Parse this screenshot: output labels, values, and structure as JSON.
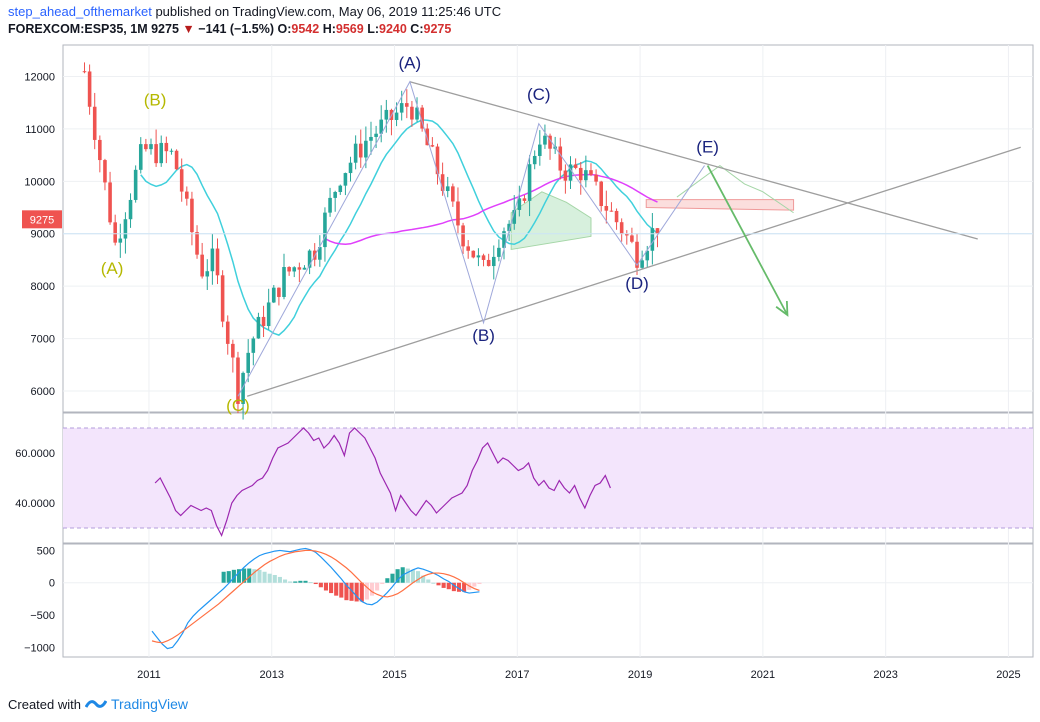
{
  "header": {
    "author": "step_ahead_ofthemarket",
    "published": " published on TradingView.com, May 06, 2019 11:25:46 UTC",
    "symbol": "FOREXCOM:ESP35, 1M",
    "last": "9275",
    "change_arrow": "▼",
    "change": "−141 (−1.5%)",
    "open_label": "O:",
    "open": "9542",
    "high_label": "H:",
    "high": "9569",
    "low_label": "L:",
    "low": "9240",
    "close_label": "C:",
    "close": "9275"
  },
  "footer": {
    "created_with": "Created with",
    "brand": "TradingView"
  },
  "colors": {
    "up": "#26a69a",
    "down": "#ef5350",
    "wave_primary": "#1a237e",
    "wave_secondary": "#b5b800",
    "trend": "#9e9e9e",
    "projection": "#66bb6a",
    "ma_magenta": "#e040fb",
    "ma_cyan": "#40d0dc",
    "rsi_line": "#9c27b0",
    "rsi_band": "#f3e5fc",
    "macd_line": "#2196f3",
    "signal_line": "#ff7043"
  },
  "chart_data": [
    {
      "type": "candlestick",
      "panel": "price",
      "interval": "1M",
      "ylim": [
        5600,
        12600
      ],
      "yticks": [
        6000,
        7000,
        8000,
        9000,
        10000,
        11000,
        12000
      ],
      "xlim": [
        2009.6,
        2025.4
      ],
      "xticks": [
        "2011",
        "2013",
        "2015",
        "2017",
        "2019",
        "2021",
        "2023",
        "2025"
      ],
      "last_price_label": "9275",
      "anchors": [
        [
          2009.95,
          12100
        ],
        [
          2010.45,
          8800
        ],
        [
          2010.9,
          10600
        ],
        [
          2011.4,
          10500
        ],
        [
          2011.85,
          8300
        ],
        [
          2012.05,
          8500
        ],
        [
          2012.45,
          6000
        ],
        [
          2012.65,
          6900
        ],
        [
          2013.2,
          8200
        ],
        [
          2013.7,
          8700
        ],
        [
          2014.1,
          10100
        ],
        [
          2014.55,
          10800
        ],
        [
          2015.25,
          11500
        ],
        [
          2015.8,
          9900
        ],
        [
          2016.1,
          9000
        ],
        [
          2016.45,
          8300
        ],
        [
          2016.75,
          9100
        ],
        [
          2017.0,
          9300
        ],
        [
          2017.35,
          10900
        ],
        [
          2017.75,
          10200
        ],
        [
          2018.05,
          10200
        ],
        [
          2018.4,
          9600
        ],
        [
          2018.7,
          9100
        ],
        [
          2018.95,
          8600
        ],
        [
          2019.35,
          9275
        ]
      ],
      "wave_labels": [
        {
          "text": "(A)",
          "x": 2015.25,
          "y": 12150,
          "color": "primary"
        },
        {
          "text": "(B)",
          "x": 2016.45,
          "y": 6950,
          "color": "primary"
        },
        {
          "text": "(C)",
          "x": 2017.35,
          "y": 11550,
          "color": "primary"
        },
        {
          "text": "(D)",
          "x": 2018.95,
          "y": 7950,
          "color": "primary"
        },
        {
          "text": "(E)",
          "x": 2020.1,
          "y": 10550,
          "color": "primary"
        },
        {
          "text": "(A)",
          "x": 2010.4,
          "y": 8230,
          "color": "secondary"
        },
        {
          "text": "(B)",
          "x": 2011.1,
          "y": 11450,
          "color": "secondary"
        },
        {
          "text": "(C)",
          "x": 2012.45,
          "y": 5620,
          "color": "secondary"
        }
      ]
    },
    {
      "type": "line",
      "panel": "rsi",
      "ylim": [
        24,
        76
      ],
      "yticks": [
        "60.0000",
        "40.0000"
      ],
      "band": [
        30,
        70
      ],
      "x_start": 2011.1,
      "values": [
        48,
        50,
        46,
        42,
        37,
        35,
        37,
        39,
        38,
        37,
        38,
        37,
        31,
        27,
        33,
        40,
        43,
        45,
        46,
        47,
        49,
        50,
        53,
        58,
        62,
        63,
        64,
        66,
        68,
        70,
        68,
        65,
        66,
        62,
        64,
        67,
        64,
        59,
        68,
        70,
        68,
        66,
        62,
        58,
        52,
        48,
        44,
        37,
        43,
        40,
        37,
        35,
        38,
        41,
        39,
        36,
        38,
        40,
        42,
        43,
        44,
        47,
        53,
        57,
        62,
        64,
        60,
        56,
        58,
        57,
        55,
        53,
        54,
        56,
        50,
        47,
        49,
        46,
        45,
        49,
        46,
        44,
        47,
        42,
        38,
        43,
        47,
        48,
        51,
        46
      ]
    },
    {
      "type": "macd",
      "panel": "macd",
      "ylim": [
        -1150,
        600
      ],
      "yticks": [
        "500",
        "0",
        "−500",
        "−1000"
      ],
      "x_start": 2011.05,
      "macd": [
        -750,
        -850,
        -950,
        -1020,
        -1000,
        -900,
        -780,
        -620,
        -520,
        -440,
        -370,
        -300,
        -230,
        -160,
        -90,
        -10,
        80,
        160,
        240,
        310,
        370,
        420,
        450,
        470,
        490,
        500,
        490,
        480,
        500,
        520,
        530,
        510,
        470,
        400,
        320,
        240,
        150,
        60,
        -40,
        -120,
        -210,
        -290,
        -330,
        -340,
        -300,
        -230,
        -150,
        -60,
        40,
        120,
        160,
        200,
        230,
        210,
        180,
        150,
        110,
        60,
        20,
        -40,
        -90,
        -140,
        -160,
        -150,
        -140
      ],
      "signal": [
        -900,
        -920,
        -930,
        -900,
        -860,
        -810,
        -750,
        -690,
        -630,
        -570,
        -510,
        -450,
        -390,
        -330,
        -260,
        -190,
        -120,
        -50,
        20,
        90,
        160,
        220,
        280,
        330,
        370,
        410,
        440,
        460,
        480,
        490,
        500,
        500,
        490,
        470,
        440,
        400,
        350,
        290,
        230,
        160,
        80,
        0,
        -70,
        -140,
        -180,
        -210,
        -220,
        -200,
        -170,
        -120,
        -60,
        0,
        50,
        100,
        130,
        150,
        150,
        140,
        120,
        90,
        50,
        0,
        -50,
        -90,
        -120
      ],
      "hist_start_index": 14
    }
  ]
}
